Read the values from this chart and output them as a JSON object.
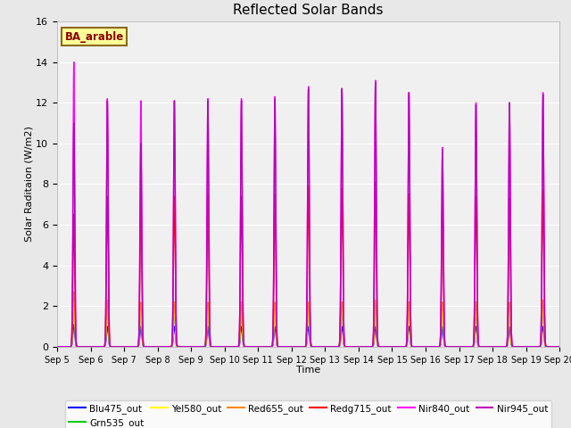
{
  "title": "Reflected Solar Bands",
  "xlabel": "Time",
  "ylabel": "Solar Raditaion (W/m2)",
  "ylim": [
    0,
    16
  ],
  "yticks": [
    0,
    2,
    4,
    6,
    8,
    10,
    12,
    14,
    16
  ],
  "annotation_text": "BA_arable",
  "annotation_color": "#8B0000",
  "annotation_bg": "#ffff99",
  "annotation_border": "#8B6914",
  "colors": {
    "Blu475_out": "#0000ff",
    "Grn535_out": "#00cc00",
    "Yel580_out": "#ffff00",
    "Red655_out": "#ff8800",
    "Redg715_out": "#ff0000",
    "Nir840_out": "#ff00ff",
    "Nir945_out": "#bb00bb"
  },
  "linewidths": {
    "Blu475_out": 0.8,
    "Grn535_out": 0.8,
    "Yel580_out": 0.8,
    "Red655_out": 0.8,
    "Redg715_out": 1.0,
    "Nir840_out": 1.0,
    "Nir945_out": 1.0
  },
  "day_peaks": {
    "Blu475_out": [
      1.1,
      1.0,
      1.0,
      1.0,
      1.0,
      1.0,
      1.0,
      1.0,
      1.0,
      1.0,
      1.0,
      1.0,
      1.0,
      1.0,
      1.0
    ],
    "Grn535_out": [
      2.0,
      2.0,
      1.8,
      1.8,
      1.8,
      1.8,
      1.8,
      1.9,
      1.9,
      2.0,
      1.9,
      1.8,
      1.8,
      1.8,
      1.9
    ],
    "Yel580_out": [
      2.1,
      2.1,
      1.9,
      1.9,
      1.9,
      1.9,
      1.9,
      2.0,
      2.0,
      2.1,
      2.0,
      1.9,
      1.9,
      1.9,
      2.0
    ],
    "Red655_out": [
      2.7,
      2.3,
      2.2,
      2.2,
      2.2,
      2.2,
      2.2,
      2.2,
      2.2,
      2.3,
      2.2,
      2.2,
      2.2,
      2.2,
      2.3
    ],
    "Redg715_out": [
      6.5,
      7.4,
      7.2,
      7.4,
      7.5,
      7.4,
      7.5,
      7.9,
      7.8,
      8.1,
      7.5,
      7.1,
      7.4,
      7.3,
      7.7
    ],
    "Nir840_out": [
      14.0,
      12.2,
      12.1,
      12.1,
      12.2,
      12.2,
      12.3,
      12.8,
      12.7,
      13.1,
      12.5,
      9.8,
      12.0,
      12.0,
      12.5
    ],
    "Nir945_out": [
      11.0,
      12.1,
      10.0,
      12.1,
      12.1,
      12.1,
      12.2,
      12.7,
      12.7,
      13.0,
      12.5,
      9.7,
      11.9,
      12.0,
      12.4
    ]
  },
  "sigma": 0.025,
  "pts_per_day": 200,
  "n_days": 15
}
